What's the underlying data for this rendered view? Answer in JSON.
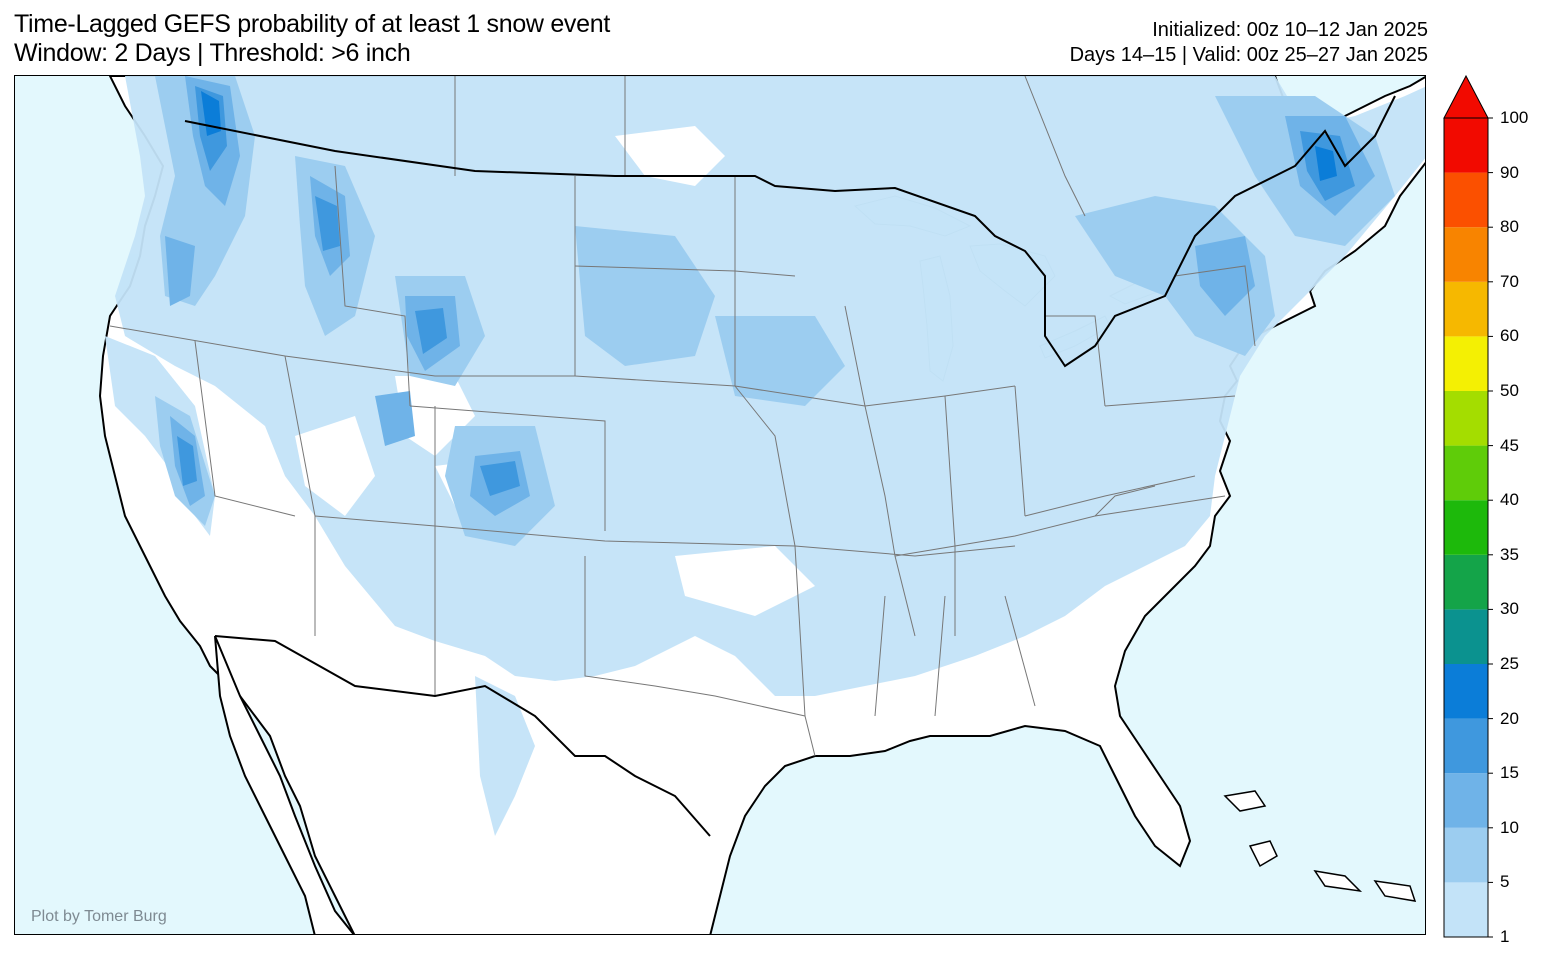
{
  "title": {
    "line1": "Time-Lagged GEFS probability of at least 1 snow event",
    "line2": "Window: 2 Days | Threshold: >6 inch"
  },
  "info": {
    "initialized": "Initialized: 00z 10–12 Jan 2025",
    "valid": "Days 14–15 | Valid: 00z 25–27 Jan 2025"
  },
  "credit": "Plot by Tomer Burg",
  "colors": {
    "ocean": "#e3f8fd",
    "land": "#ffffff",
    "boundary": "#000000",
    "state_lines": "#777777"
  },
  "colorbar": {
    "extend": "max",
    "levels": [
      {
        "label": "1",
        "color": "#c3e3f8"
      },
      {
        "label": "5",
        "color": "#9ccdf0"
      },
      {
        "label": "10",
        "color": "#6fb3e8"
      },
      {
        "label": "15",
        "color": "#3f98de"
      },
      {
        "label": "20",
        "color": "#0b7dd8"
      },
      {
        "label": "25",
        "color": "#0b928f"
      },
      {
        "label": "30",
        "color": "#14a449"
      },
      {
        "label": "35",
        "color": "#1db90b"
      },
      {
        "label": "40",
        "color": "#5fcc09"
      },
      {
        "label": "45",
        "color": "#a4dd00"
      },
      {
        "label": "50",
        "color": "#f4f003"
      },
      {
        "label": "60",
        "color": "#f6b800"
      },
      {
        "label": "70",
        "color": "#f88400"
      },
      {
        "label": "80",
        "color": "#fb5000"
      },
      {
        "label": "90",
        "color": "#f20a00"
      },
      {
        "label": "100",
        "color": ""
      }
    ],
    "arrow_color": "#f20a00"
  },
  "map_regions": [
    {
      "name": "pacific-northwest-snow",
      "level": "5"
    },
    {
      "name": "cascades-snow",
      "level": "15"
    },
    {
      "name": "northern-rockies-snow",
      "level": "15"
    },
    {
      "name": "sierra-nevada-snow",
      "level": "15"
    },
    {
      "name": "colorado-rockies-snow",
      "level": "15"
    },
    {
      "name": "northern-plains-snow",
      "level": "5"
    },
    {
      "name": "midwest-snow",
      "level": "1"
    },
    {
      "name": "northeast-snow",
      "level": "10"
    },
    {
      "name": "maine-snow",
      "level": "15"
    }
  ]
}
